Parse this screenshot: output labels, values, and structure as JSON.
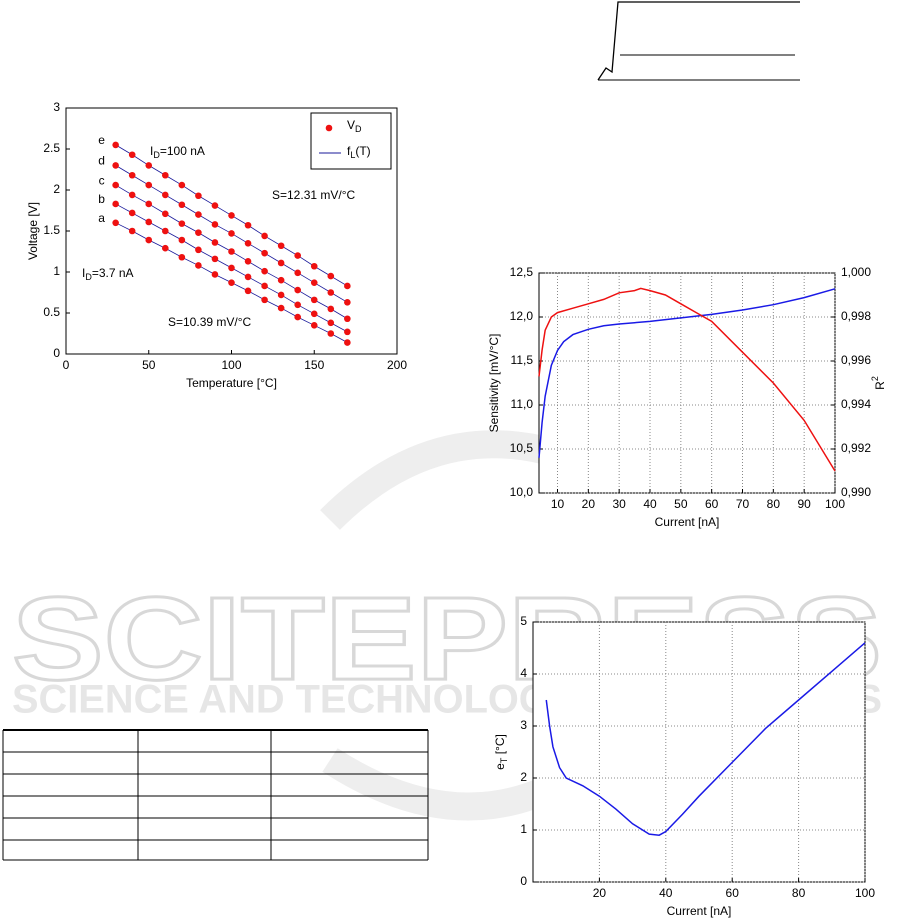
{
  "watermark": {
    "title": "SCITEPRESS",
    "subtitle": "SCIENCE AND TECHNOLOGY PUBLICATIONS"
  },
  "chart_data": [
    {
      "type": "scatter",
      "xlabel": "Temperature [°C]",
      "ylabel": "Voltage [V]",
      "xlim": [
        0,
        200
      ],
      "xticks": [
        0,
        50,
        100,
        150,
        200
      ],
      "ylim": [
        0,
        3
      ],
      "yticks": [
        0,
        0.5,
        1,
        1.5,
        2,
        2.5,
        3
      ],
      "x": [
        30,
        40,
        50,
        60,
        70,
        80,
        90,
        100,
        110,
        120,
        130,
        140,
        150,
        160,
        170
      ],
      "point_color": "#ee1111",
      "line_color": "#1a1a9a",
      "series": [
        {
          "name": "a",
          "values": [
            1.6,
            1.5,
            1.39,
            1.29,
            1.18,
            1.08,
            0.97,
            0.87,
            0.77,
            0.66,
            0.56,
            0.45,
            0.35,
            0.25,
            0.14
          ]
        },
        {
          "name": "b",
          "values": [
            1.83,
            1.72,
            1.61,
            1.5,
            1.39,
            1.27,
            1.16,
            1.05,
            0.94,
            0.83,
            0.72,
            0.6,
            0.49,
            0.38,
            0.27
          ]
        },
        {
          "name": "c",
          "values": [
            2.06,
            1.94,
            1.83,
            1.71,
            1.59,
            1.48,
            1.36,
            1.25,
            1.13,
            1.01,
            0.9,
            0.78,
            0.66,
            0.55,
            0.43
          ]
        },
        {
          "name": "d",
          "values": [
            2.3,
            2.18,
            2.06,
            1.94,
            1.82,
            1.7,
            1.58,
            1.47,
            1.35,
            1.23,
            1.11,
            0.99,
            0.87,
            0.75,
            0.63
          ]
        },
        {
          "name": "e",
          "values": [
            2.55,
            2.43,
            2.3,
            2.18,
            2.06,
            1.93,
            1.81,
            1.69,
            1.57,
            1.44,
            1.32,
            1.2,
            1.07,
            0.95,
            0.83
          ]
        }
      ],
      "legend": {
        "position": "upper right",
        "entries": [
          {
            "text": "V",
            "sub": "D"
          },
          {
            "text": "f",
            "sub": "L",
            "after": "(T)"
          }
        ]
      },
      "annotations": [
        {
          "text": "I",
          "sub": "D",
          "after": "=100 nA"
        },
        {
          "text": "S=12.31 mV/°C"
        },
        {
          "text": "I",
          "sub": "D",
          "after": "=3.7 nA"
        },
        {
          "text": "S=10.39 mV/°C"
        }
      ]
    },
    {
      "type": "line",
      "xlabel": "Current [nA]",
      "ylabel": "Sensitivity [mV/°C]",
      "y2label": {
        "text": "R",
        "sup": "2"
      },
      "xlim": [
        4,
        100
      ],
      "xticks": [
        10,
        20,
        30,
        40,
        50,
        60,
        70,
        80,
        90,
        100
      ],
      "ylim": [
        10,
        12.5
      ],
      "yticks": [
        {
          "value": 10,
          "label": "10,0"
        },
        {
          "value": 10.5,
          "label": "10,5"
        },
        {
          "value": 11,
          "label": "11,0"
        },
        {
          "value": 11.5,
          "label": "11,5"
        },
        {
          "value": 12,
          "label": "12,0"
        },
        {
          "value": 12.5,
          "label": "12,5"
        }
      ],
      "y2lim": [
        0.99,
        1.0
      ],
      "y2ticks": [
        {
          "value": 0.99,
          "label": "0,990"
        },
        {
          "value": 0.992,
          "label": "0,992"
        },
        {
          "value": 0.994,
          "label": "0,994"
        },
        {
          "value": 0.996,
          "label": "0,996"
        },
        {
          "value": 0.998,
          "label": "0,998"
        },
        {
          "value": 1.0,
          "label": "1,000"
        }
      ],
      "grid": true,
      "series": [
        {
          "color": "#1a1ae6",
          "x": [
            4,
            5,
            6,
            8,
            10,
            12,
            15,
            20,
            25,
            30,
            40,
            50,
            60,
            70,
            80,
            90,
            100
          ],
          "values": [
            10.4,
            10.8,
            11.1,
            11.45,
            11.62,
            11.72,
            11.8,
            11.86,
            11.9,
            11.92,
            11.95,
            11.99,
            12.03,
            12.08,
            12.14,
            12.22,
            12.32
          ]
        },
        {
          "color": "#ee1111",
          "axis": "y2",
          "x": [
            4,
            5,
            6,
            8,
            10,
            15,
            20,
            25,
            30,
            35,
            37,
            40,
            45,
            50,
            55,
            60,
            70,
            80,
            90,
            100
          ],
          "values": [
            0.9953,
            0.9965,
            0.9974,
            0.998,
            0.9982,
            0.9984,
            0.9986,
            0.9988,
            0.9991,
            0.9992,
            0.9993,
            0.9992,
            0.999,
            0.9986,
            0.9982,
            0.9978,
            0.9964,
            0.995,
            0.9933,
            0.991
          ]
        }
      ]
    },
    {
      "type": "line",
      "xlabel": "Current [nA]",
      "ylabel": {
        "text": "e",
        "sub": "T",
        "after": " [°C]"
      },
      "xlim": [
        4,
        100
      ],
      "xaxis_from": 0,
      "xticks": [
        20,
        40,
        60,
        80,
        100
      ],
      "ylim": [
        0,
        5
      ],
      "yticks": [
        0,
        1,
        2,
        3,
        4,
        5
      ],
      "grid": true,
      "series": [
        {
          "color": "#1a1ae6",
          "x": [
            4,
            5,
            6,
            8,
            10,
            15,
            20,
            25,
            30,
            35,
            38,
            40,
            45,
            50,
            60,
            70,
            80,
            90,
            100
          ],
          "values": [
            3.5,
            3.0,
            2.6,
            2.2,
            2.0,
            1.85,
            1.65,
            1.4,
            1.12,
            0.92,
            0.9,
            0.97,
            1.3,
            1.65,
            2.3,
            2.95,
            3.5,
            4.05,
            4.6
          ]
        }
      ]
    }
  ]
}
